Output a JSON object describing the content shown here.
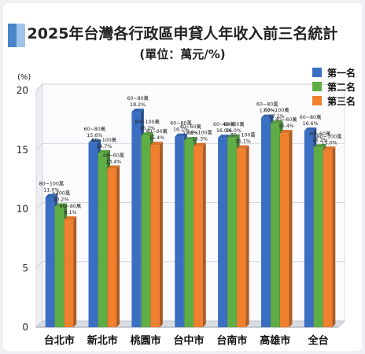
{
  "header": {
    "title": "2025年台灣各行政區申貸人年收入前三名統計",
    "subtitle": "(單位：萬元/%)"
  },
  "chart_data": {
    "type": "bar",
    "y_unit_label": "(%)",
    "ylim": [
      0,
      20
    ],
    "yticks": [
      0,
      5,
      10,
      15,
      20
    ],
    "grid": true,
    "legend_position": "top-right",
    "categories": [
      "台北市",
      "新北市",
      "桃園市",
      "台中市",
      "台南市",
      "高雄市",
      "全台"
    ],
    "series": [
      {
        "name": "第一名",
        "color": "#3b6fc4",
        "values": [
          11.0,
          15.6,
          18.2,
          16.1,
          16.0,
          17.7,
          16.6
        ],
        "brackets": [
          "80~100萬",
          "60~80萬",
          "60~80萬",
          "60~80萬",
          "60~80萬",
          "60~80萬",
          "60~80萬"
        ]
      },
      {
        "name": "第二名",
        "color": "#5fae45",
        "values": [
          10.2,
          14.7,
          16.2,
          15.8,
          16.0,
          17.2,
          15.2
        ],
        "brackets": [
          ">400萬",
          "80~100萬",
          "80~100萬",
          "40~60萬",
          "40~60萬",
          "80~100萬",
          "40~60萬"
        ]
      },
      {
        "name": "第三名",
        "color": "#f07f2e",
        "values": [
          9.1,
          13.4,
          15.4,
          15.3,
          15.1,
          16.4,
          15.0
        ],
        "brackets": [
          "60~80萬",
          "40~60萬",
          "40~60萬",
          "80~100萬",
          "80~100萬",
          "40~60萬",
          "80~100萬"
        ]
      }
    ]
  }
}
